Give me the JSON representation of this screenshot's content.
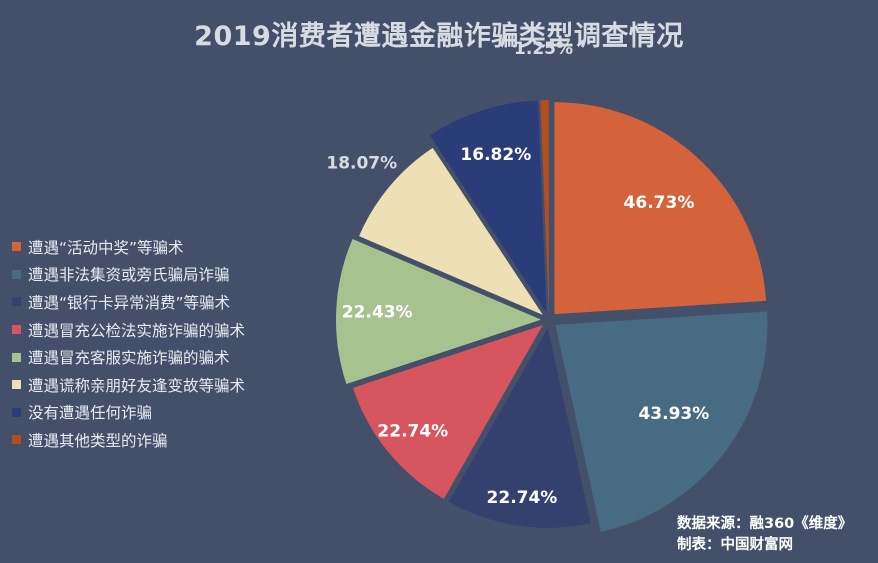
{
  "chart_data": {
    "type": "pie",
    "title": "2019消费者遭遇金融诈骗类型调查情况",
    "categories": [
      "遭遇“活动中奖”等骗术",
      "遭遇非法集资或旁氏骗局诈骗",
      "遭遇“银行卡异常消费”等骗术",
      "遭遇冒充公检法实施诈骗的骗术",
      "遭遇冒充客服实施诈骗的骗术",
      "遭遇谎称亲朋好友逢变故等骗术",
      "没有遭遇任何诈骗",
      "遭遇其他类型的诈骗"
    ],
    "values": [
      46.73,
      43.93,
      22.74,
      22.74,
      22.43,
      18.07,
      16.82,
      1.25
    ],
    "value_labels": [
      "46.73%",
      "43.93%",
      "22.74%",
      "22.74%",
      "22.43%",
      "18.07%",
      "16.82%",
      "1.25%"
    ],
    "colors": [
      "#d4623b",
      "#466b82",
      "#34406e",
      "#d6555e",
      "#a8c28f",
      "#ede0b4",
      "#2a3d78",
      "#b34e1f"
    ],
    "legend_position": "left"
  },
  "source": {
    "line1": "数据来源：融360《维度》",
    "line2": "制表：中国财富网"
  }
}
